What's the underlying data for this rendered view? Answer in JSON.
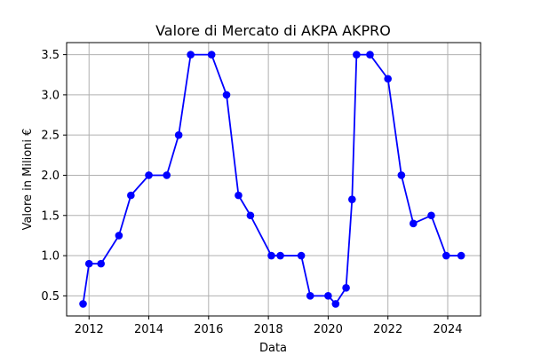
{
  "chart_data": {
    "type": "line",
    "title": "Valore di Mercato di AKPA AKPRO",
    "xlabel": "Data",
    "ylabel": "Valore in Milioni €",
    "xlim": [
      2011.25,
      2025.1
    ],
    "ylim": [
      0.25,
      3.65
    ],
    "x_ticks": [
      2012,
      2014,
      2016,
      2018,
      2020,
      2022,
      2024
    ],
    "y_ticks": [
      0.5,
      1.0,
      1.5,
      2.0,
      2.5,
      3.0,
      3.5
    ],
    "y_tick_labels": [
      "0.5",
      "1.0",
      "1.5",
      "2.0",
      "2.5",
      "3.0",
      "3.5"
    ],
    "grid": true,
    "series": [
      {
        "color": "#0000ff",
        "marker": "circle",
        "points": [
          [
            2011.8,
            0.4
          ],
          [
            2012.0,
            0.9
          ],
          [
            2012.4,
            0.9
          ],
          [
            2013.0,
            1.25
          ],
          [
            2013.4,
            1.75
          ],
          [
            2014.0,
            2.0
          ],
          [
            2014.6,
            2.0
          ],
          [
            2015.0,
            2.5
          ],
          [
            2015.4,
            3.5
          ],
          [
            2016.1,
            3.5
          ],
          [
            2016.6,
            3.0
          ],
          [
            2017.0,
            1.75
          ],
          [
            2017.4,
            1.5
          ],
          [
            2018.1,
            1.0
          ],
          [
            2018.4,
            1.0
          ],
          [
            2019.1,
            1.0
          ],
          [
            2019.4,
            0.5
          ],
          [
            2020.0,
            0.5
          ],
          [
            2020.25,
            0.4
          ],
          [
            2020.6,
            0.6
          ],
          [
            2020.8,
            1.7
          ],
          [
            2020.95,
            3.5
          ],
          [
            2021.4,
            3.5
          ],
          [
            2022.0,
            3.2
          ],
          [
            2022.45,
            2.0
          ],
          [
            2022.85,
            1.4
          ],
          [
            2023.45,
            1.5
          ],
          [
            2023.95,
            1.0
          ],
          [
            2024.45,
            1.0
          ]
        ]
      }
    ]
  }
}
